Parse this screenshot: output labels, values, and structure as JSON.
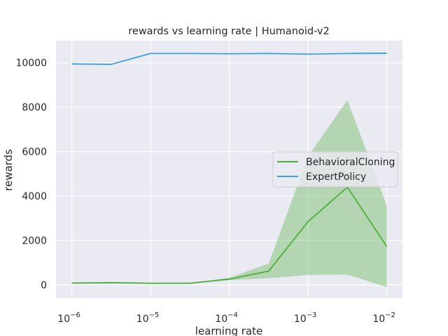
{
  "chart_data": {
    "type": "line",
    "title": "rewards vs learning rate | Humanoid-v2",
    "xlabel": "learning rate",
    "ylabel": "rewards",
    "xscale": "log",
    "xlim": [
      6.3e-07,
      0.0158
    ],
    "ylim": [
      -600,
      11000
    ],
    "grid": true,
    "legend_position": "center-right",
    "x": [
      1e-06,
      3.16e-06,
      1e-05,
      3.16e-05,
      0.0001,
      0.000316,
      0.001,
      0.00316,
      0.01
    ],
    "x_ticks": [
      {
        "value": 1e-06,
        "base": "10",
        "exp": "−6"
      },
      {
        "value": 1e-05,
        "base": "10",
        "exp": "−5"
      },
      {
        "value": 0.0001,
        "base": "10",
        "exp": "−4"
      },
      {
        "value": 0.001,
        "base": "10",
        "exp": "−3"
      },
      {
        "value": 0.01,
        "base": "10",
        "exp": "−2"
      }
    ],
    "y_ticks": [
      {
        "value": 0,
        "label": "0"
      },
      {
        "value": 2000,
        "label": "2000"
      },
      {
        "value": 4000,
        "label": "4000"
      },
      {
        "value": 6000,
        "label": "6000"
      },
      {
        "value": 8000,
        "label": "8000"
      },
      {
        "value": 10000,
        "label": "10000"
      }
    ],
    "series": [
      {
        "name": "BehavioralCloning",
        "color": "#4daf3a",
        "band_color": "#4daf3a",
        "values": [
          80,
          100,
          75,
          75,
          260,
          620,
          2850,
          4400,
          1720
        ],
        "band_lower": [
          80,
          100,
          75,
          75,
          210,
          300,
          450,
          460,
          -100
        ],
        "band_upper": [
          80,
          100,
          75,
          75,
          320,
          960,
          5800,
          8320,
          3560
        ]
      },
      {
        "name": "ExpertPolicy",
        "color": "#3b9fe6",
        "values": [
          9950,
          9930,
          10420,
          10420,
          10410,
          10420,
          10390,
          10420,
          10430
        ]
      }
    ]
  },
  "colors": {
    "plot_background": "#eaeaf2",
    "grid": "#ffffff",
    "band_opacity": 0.35
  }
}
